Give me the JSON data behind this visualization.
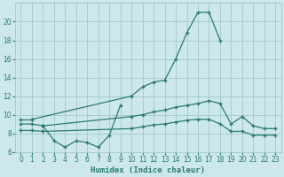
{
  "xlabel": "Humidex (Indice chaleur)",
  "bg_color": "#cde8ea",
  "grid_color": "#a0c8cc",
  "line_color": "#2a7a6f",
  "ylim": [
    6,
    22
  ],
  "xlim": [
    -0.5,
    23.5
  ],
  "yticks": [
    6,
    8,
    10,
    12,
    14,
    16,
    18,
    20
  ],
  "xticks": [
    0,
    1,
    2,
    3,
    4,
    5,
    6,
    7,
    8,
    9,
    10,
    11,
    12,
    13,
    14,
    15,
    16,
    17,
    18,
    19,
    20,
    21,
    22,
    23
  ],
  "curve_main_x": [
    0,
    1,
    10,
    11,
    12,
    13,
    14,
    15,
    16,
    17,
    18
  ],
  "curve_main_y": [
    9.5,
    9.5,
    12.0,
    13.0,
    13.5,
    13.7,
    16.0,
    18.8,
    21.0,
    21.0,
    18.0
  ],
  "curve_wiggly_x": [
    2,
    3,
    4,
    5,
    6,
    7,
    8,
    9
  ],
  "curve_wiggly_y": [
    8.8,
    7.2,
    6.5,
    7.2,
    7.0,
    6.5,
    7.8,
    11.0
  ],
  "curve_upper_x": [
    0,
    1,
    2,
    10,
    11,
    12,
    13,
    14,
    15,
    16,
    17,
    18,
    19,
    20,
    21,
    22,
    23
  ],
  "curve_upper_y": [
    9.0,
    9.0,
    8.8,
    9.8,
    10.0,
    10.3,
    10.5,
    10.8,
    11.0,
    11.2,
    11.5,
    11.2,
    9.0,
    9.8,
    8.8,
    8.5,
    8.5
  ],
  "curve_lower_x": [
    0,
    1,
    2,
    10,
    11,
    12,
    13,
    14,
    15,
    16,
    17,
    18,
    19,
    20,
    21,
    22,
    23
  ],
  "curve_lower_y": [
    8.3,
    8.3,
    8.2,
    8.5,
    8.7,
    8.9,
    9.0,
    9.2,
    9.4,
    9.5,
    9.5,
    9.0,
    8.2,
    8.2,
    7.8,
    7.8,
    7.8
  ]
}
